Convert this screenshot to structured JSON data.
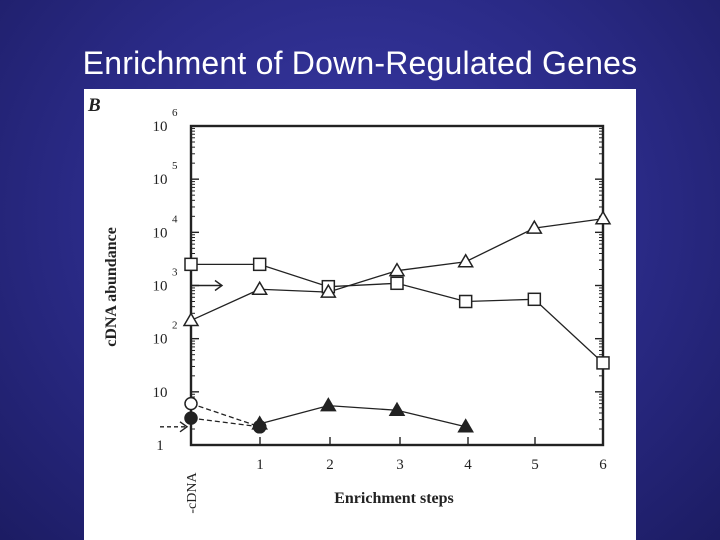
{
  "slide": {
    "title": "Enrichment of Down-Regulated Genes"
  },
  "chart_data": {
    "type": "line",
    "panel_label": "B",
    "xlabel": "Enrichment steps",
    "ylabel": "cDNA abundance",
    "x_ticks": [
      "-cDNA",
      "1",
      "2",
      "3",
      "4",
      "5",
      "6"
    ],
    "y_ticks": [
      {
        "base": "1",
        "exp": ""
      },
      {
        "base": "10",
        "exp": ""
      },
      {
        "base": "10",
        "exp": "2"
      },
      {
        "base": "10",
        "exp": "3"
      },
      {
        "base": "10",
        "exp": "4"
      },
      {
        "base": "10",
        "exp": "5"
      },
      {
        "base": "10",
        "exp": "6"
      }
    ],
    "y_scale": "log",
    "ylim": [
      1,
      1000000
    ],
    "xlim": [
      0,
      6
    ],
    "grid": false,
    "series": [
      {
        "marker": "open-square",
        "line": "solid",
        "x": [
          0,
          1,
          2,
          3,
          4,
          5,
          6
        ],
        "y": [
          2500,
          2500,
          950,
          1100,
          500,
          550,
          35
        ]
      },
      {
        "marker": "open-triangle",
        "line": "solid",
        "x": [
          0,
          1,
          2,
          3,
          4,
          5,
          6
        ],
        "y": [
          220,
          850,
          750,
          1900,
          2800,
          12000,
          18000
        ]
      },
      {
        "marker": "filled-triangle",
        "line": "solid",
        "x": [
          1,
          2,
          3,
          4
        ],
        "y": [
          2.5,
          5.5,
          4.5,
          2.2
        ]
      },
      {
        "marker": "open-circle",
        "line": "dashed",
        "x": [
          0,
          1
        ],
        "y": [
          6,
          2.2
        ]
      },
      {
        "marker": "filled-circle",
        "line": "dashed",
        "x": [
          0,
          1
        ],
        "y": [
          3.2,
          2.2
        ]
      }
    ],
    "annotations": [
      {
        "type": "solid-arrow",
        "at_y": 1000
      },
      {
        "type": "dashed-arrow",
        "at_y": 2.2
      }
    ]
  }
}
